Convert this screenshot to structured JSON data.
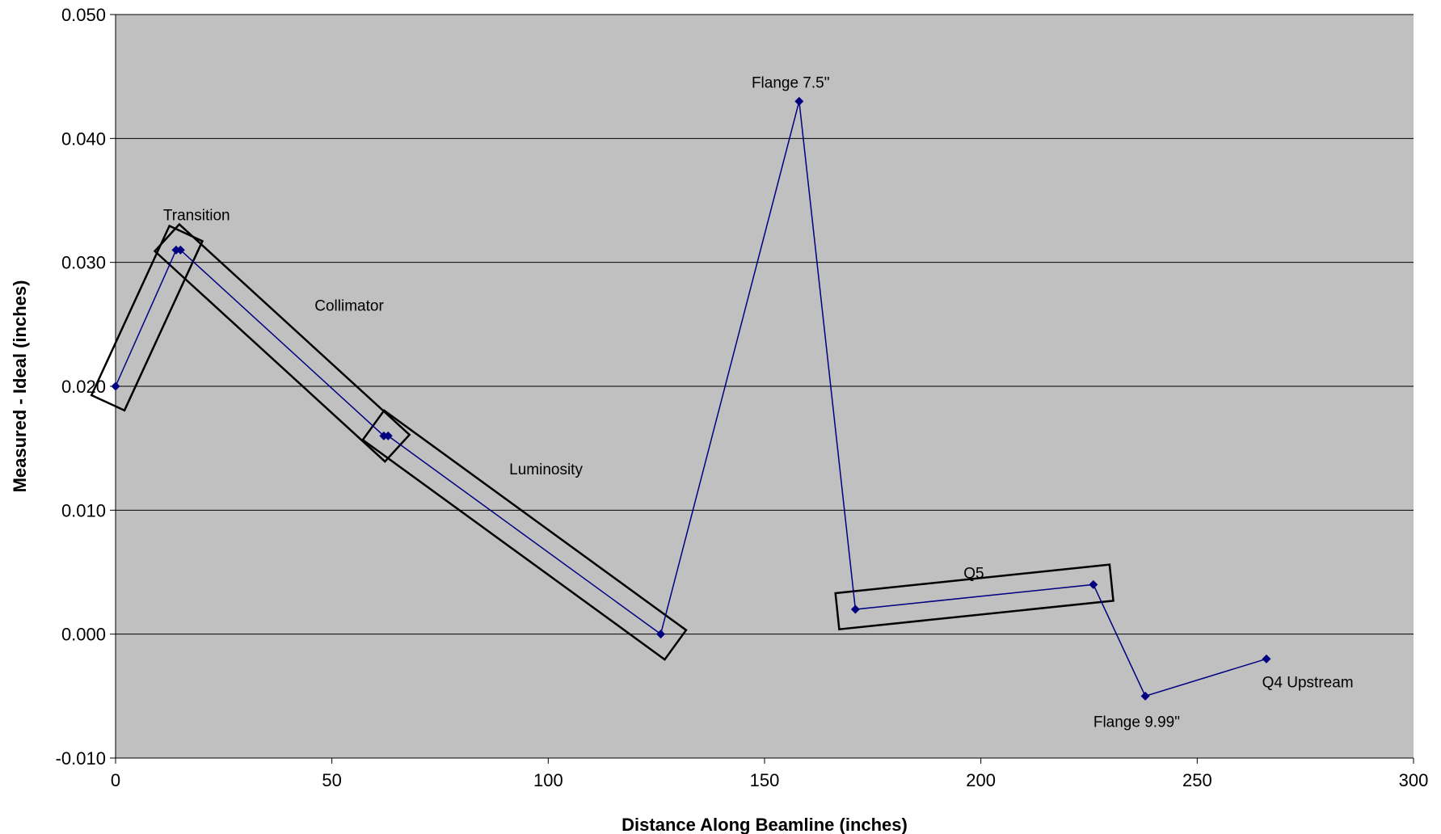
{
  "chart_data": {
    "type": "line",
    "title": "",
    "xlabel": "Distance Along Beamline (inches)",
    "ylabel": "Measured - Ideal (inches)",
    "xlim": [
      0,
      300
    ],
    "ylim": [
      -0.01,
      0.05
    ],
    "x_ticks": [
      0,
      50,
      100,
      150,
      200,
      250,
      300
    ],
    "x_tick_labels": [
      "0",
      "50",
      "100",
      "150",
      "200",
      "250",
      "300"
    ],
    "y_ticks": [
      -0.01,
      0.0,
      0.01,
      0.02,
      0.03,
      0.04,
      0.05
    ],
    "y_tick_labels": [
      "-0.010",
      "0.000",
      "0.010",
      "0.020",
      "0.030",
      "0.040",
      "0.050"
    ],
    "grid": "horizontal",
    "legend": "none",
    "colors": {
      "plot_background": "#c0c0c0",
      "series_line": "#000080",
      "series_marker": "#000080",
      "box_outline": "#000000",
      "gridline": "#000000"
    },
    "series": [
      {
        "x": [
          0,
          14,
          15,
          62,
          63,
          126,
          158,
          171,
          226,
          238,
          266
        ],
        "y": [
          0.02,
          0.031,
          0.031,
          0.016,
          0.016,
          0.0,
          0.043,
          0.002,
          0.004,
          -0.005,
          -0.002
        ]
      }
    ],
    "annotations": [
      {
        "text": "Transition",
        "x": 11,
        "y": 0.0334
      },
      {
        "text": "Collimator",
        "x": 46,
        "y": 0.0261
      },
      {
        "text": "Luminosity",
        "x": 91,
        "y": 0.0129
      },
      {
        "text": "Flange 7.5\"",
        "x": 147,
        "y": 0.0441
      },
      {
        "text": "Q5",
        "x": 196,
        "y": 0.0045
      },
      {
        "text": "Flange 9.99\"",
        "x": 226,
        "y": -0.0075
      },
      {
        "text": "Q4 Upstream",
        "x": 265,
        "y": -0.0043
      }
    ],
    "group_boxes": [
      {
        "name": "Transition",
        "from": [
          0,
          0.02
        ],
        "to": [
          14.5,
          0.031
        ],
        "half_width": 4.2
      },
      {
        "name": "Collimator",
        "from": [
          15,
          0.031
        ],
        "to": [
          62,
          0.016
        ],
        "half_width": 4.2
      },
      {
        "name": "Luminosity",
        "from": [
          63,
          0.016
        ],
        "to": [
          126,
          0.0
        ],
        "half_width": 4.2
      },
      {
        "name": "Q5",
        "from": [
          171,
          0.002
        ],
        "to": [
          226,
          0.004
        ],
        "half_width": 4.2
      }
    ]
  }
}
